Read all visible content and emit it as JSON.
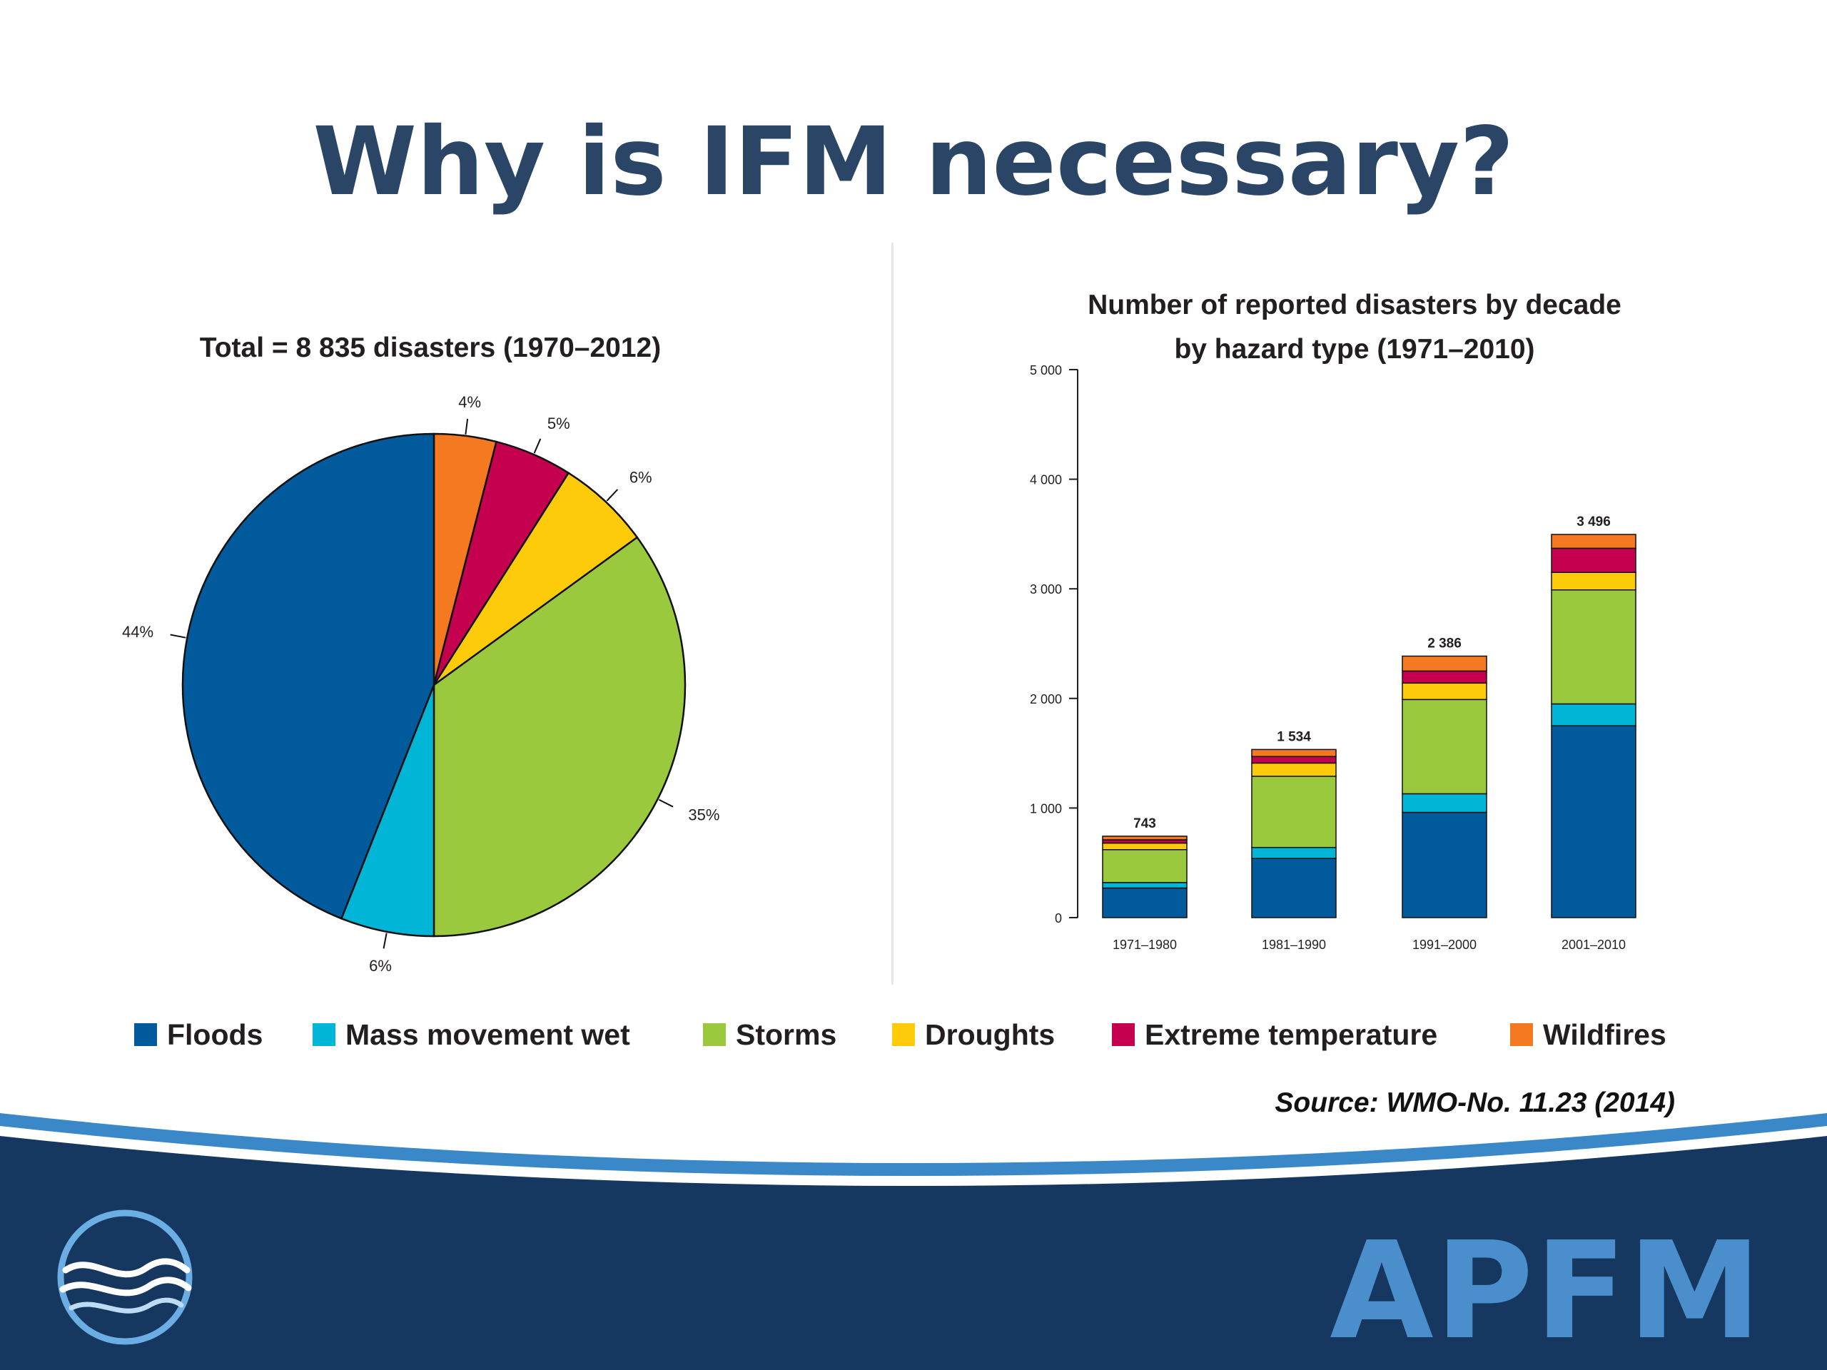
{
  "slide": {
    "title": "Why is IFM necessary?",
    "source": "Source: WMO-No. 11.23 (2014)",
    "logo_text": "APFM"
  },
  "colors": {
    "title": "#2a4566",
    "floods": "#005a9b",
    "mass_movement_wet": "#00b5d6",
    "storms": "#9bc93d",
    "droughts": "#fdcb0a",
    "extreme_temperature": "#c4004f",
    "wildfires": "#f47920",
    "footer_dark": "#16375f",
    "footer_accent": "#3b88c8"
  },
  "legend": [
    {
      "label": "Floods",
      "color": "#005a9b"
    },
    {
      "label": "Mass movement wet",
      "color": "#00b5d6"
    },
    {
      "label": "Storms",
      "color": "#9bc93d"
    },
    {
      "label": "Droughts",
      "color": "#fdcb0a"
    },
    {
      "label": "Extreme temperature",
      "color": "#c4004f"
    },
    {
      "label": "Wildfires",
      "color": "#f47920"
    }
  ],
  "chart_data": [
    {
      "type": "pie",
      "title": "Total = 8 835 disasters (1970–2012)",
      "slices": [
        {
          "name": "Wildfires",
          "value": 4,
          "label": "4%"
        },
        {
          "name": "Extreme temperature",
          "value": 5,
          "label": "5%"
        },
        {
          "name": "Droughts",
          "value": 6,
          "label": "6%"
        },
        {
          "name": "Storms",
          "value": 35,
          "label": "35%"
        },
        {
          "name": "Mass movement wet",
          "value": 6,
          "label": "6%"
        },
        {
          "name": "Floods",
          "value": 44,
          "label": "44%"
        }
      ]
    },
    {
      "type": "bar",
      "stacked": true,
      "title": "Number of reported disasters by decade by hazard type (1971–2010)",
      "title_lines": [
        "Number of reported disasters by decade",
        "by hazard type (1971–2010)"
      ],
      "categories": [
        "1971–1980",
        "1981–1990",
        "1991–2000",
        "2001–2010"
      ],
      "totals": [
        743,
        1534,
        2386,
        3496
      ],
      "total_labels": [
        "743",
        "1 534",
        "2 386",
        "3 496"
      ],
      "ylim": [
        0,
        5000
      ],
      "yticks": [
        0,
        1000,
        2000,
        3000,
        4000,
        5000
      ],
      "ytick_labels": [
        "0",
        "1 000",
        "2 000",
        "3 000",
        "4 000",
        "5 000"
      ],
      "series": [
        {
          "name": "Floods",
          "values": [
            270,
            540,
            960,
            1750
          ]
        },
        {
          "name": "Mass movement wet",
          "values": [
            50,
            100,
            170,
            200
          ]
        },
        {
          "name": "Storms",
          "values": [
            300,
            650,
            860,
            1040
          ]
        },
        {
          "name": "Droughts",
          "values": [
            60,
            120,
            150,
            160
          ]
        },
        {
          "name": "Extreme temperature",
          "values": [
            30,
            60,
            110,
            220
          ]
        },
        {
          "name": "Wildfires",
          "values": [
            33,
            64,
            136,
            126
          ]
        }
      ]
    }
  ]
}
